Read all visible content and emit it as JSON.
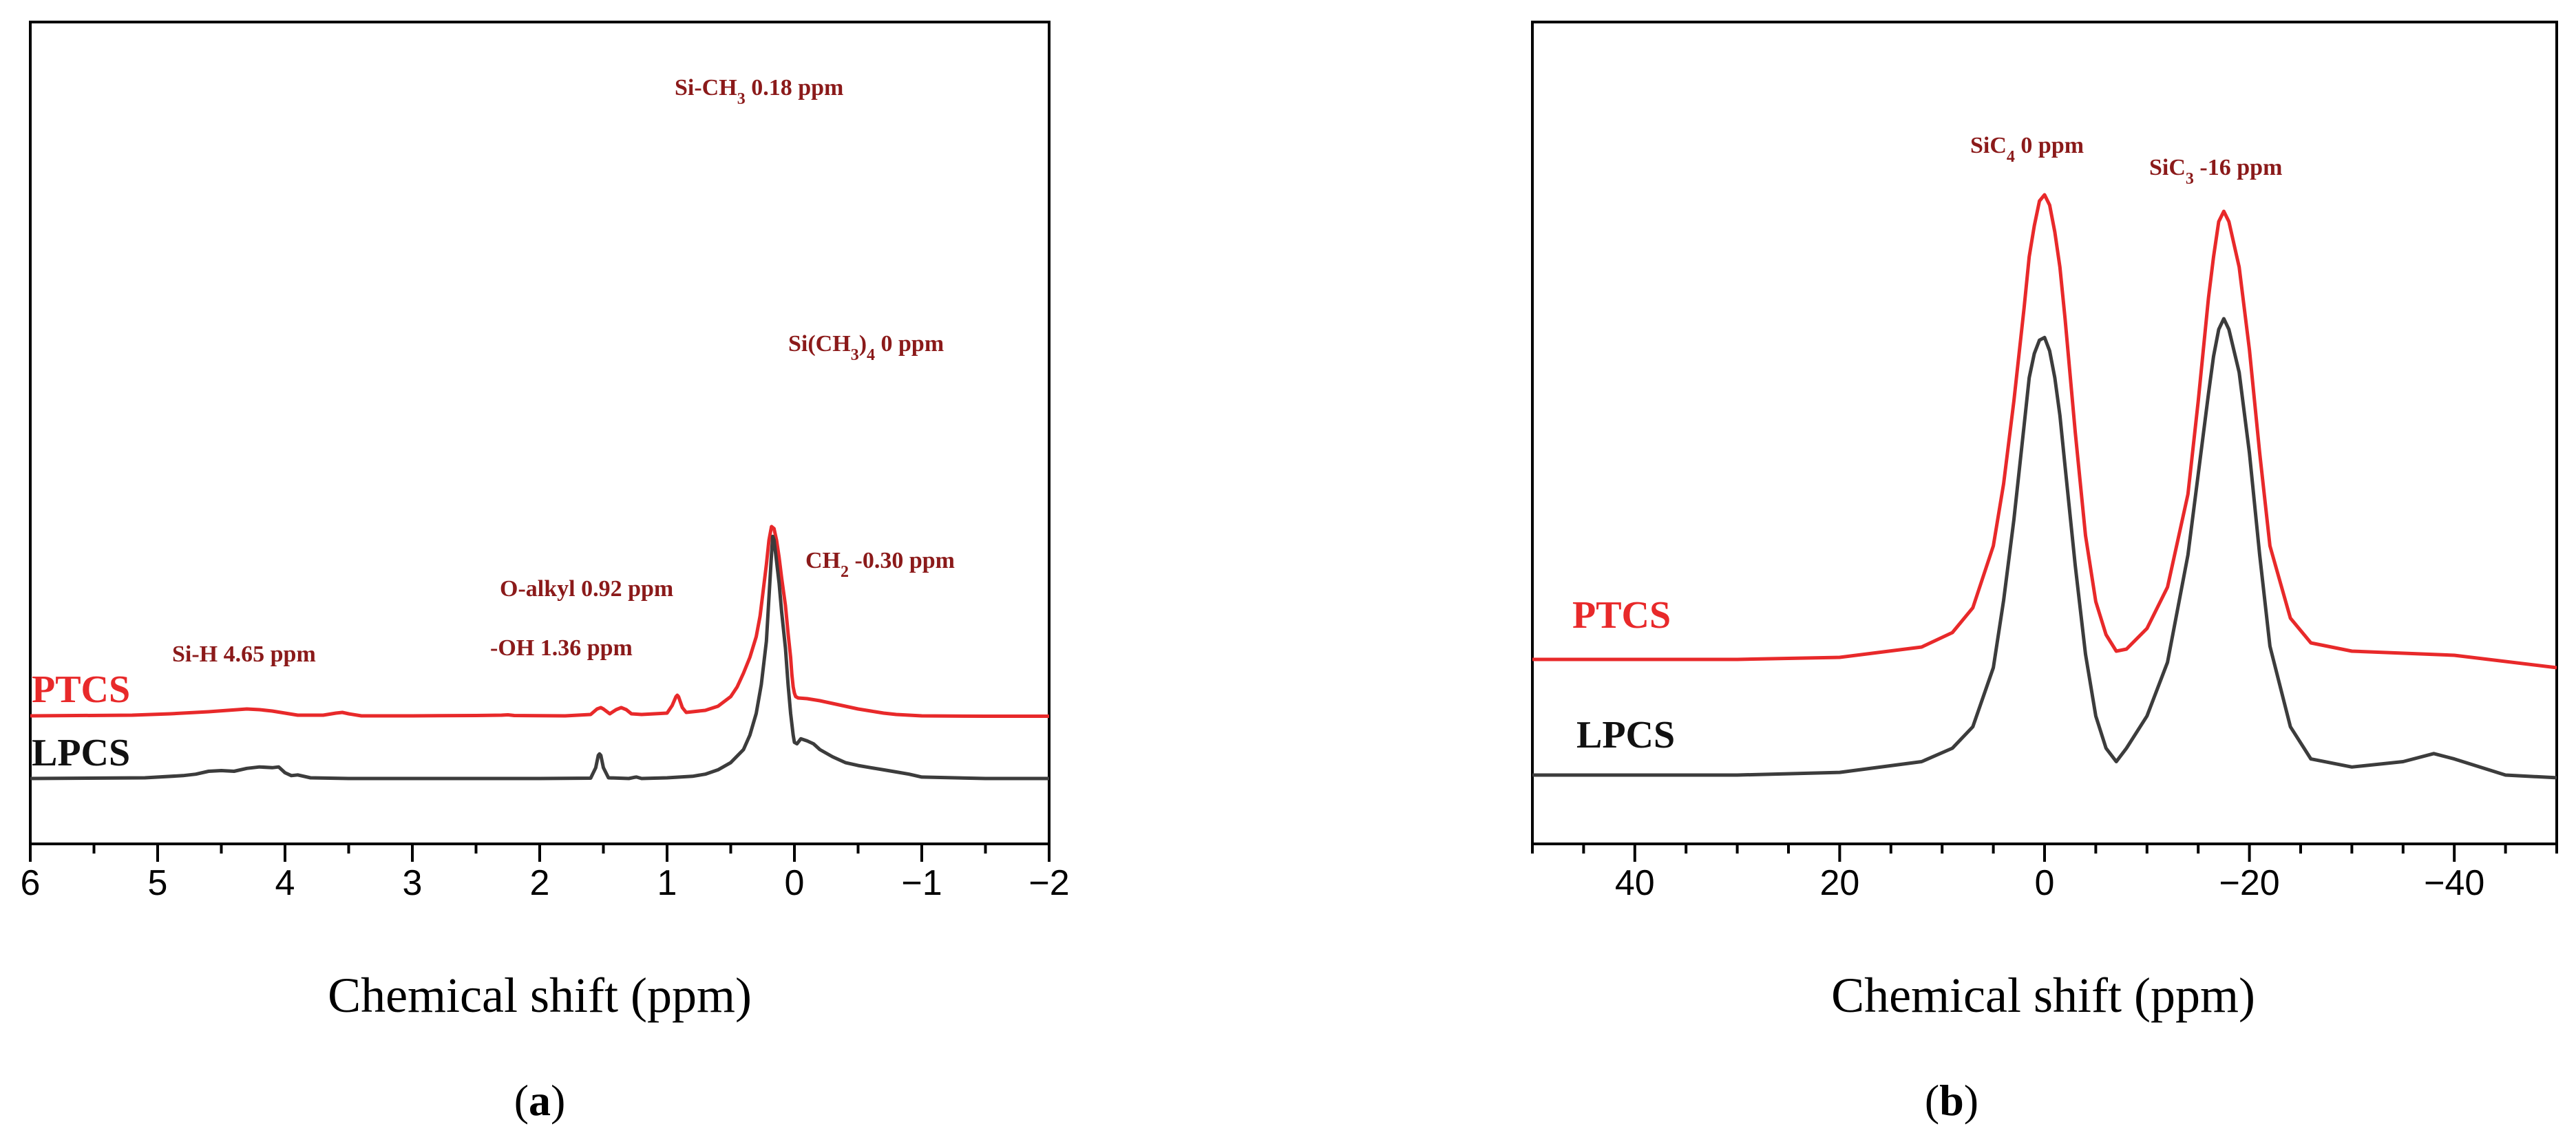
{
  "chart_data": [
    {
      "type": "line",
      "panel_label": "a",
      "xlabel": "Chemical shift (ppm)",
      "xlim": [
        6,
        -2
      ],
      "xticks": [
        6,
        5,
        4,
        3,
        2,
        1,
        0,
        -1,
        -2
      ],
      "tick_labels": [
        "6",
        "5",
        "4",
        "3",
        "2",
        "1",
        "0",
        "−1",
        "−2"
      ],
      "yaxis": "none",
      "series": [
        {
          "name": "PTCS",
          "color": "#e8292a",
          "baseline": 0.0,
          "x": [
            6,
            5.2,
            4.9,
            4.7,
            4.6,
            4.45,
            4.3,
            4.2,
            4.1,
            4.0,
            3.9,
            3.7,
            3.6,
            3.55,
            3.5,
            3.4,
            3.0,
            2.5,
            2.3,
            2.25,
            2.2,
            1.8,
            1.6,
            1.55,
            1.52,
            1.5,
            1.45,
            1.4,
            1.36,
            1.32,
            1.28,
            1.2,
            1.0,
            0.96,
            0.93,
            0.92,
            0.91,
            0.88,
            0.85,
            0.7,
            0.6,
            0.5,
            0.45,
            0.4,
            0.35,
            0.3,
            0.27,
            0.25,
            0.22,
            0.2,
            0.18,
            0.16,
            0.14,
            0.12,
            0.1,
            0.07,
            0.05,
            0.03,
            0.02,
            0.01,
            0.0,
            -0.01,
            -0.03,
            -0.1,
            -0.2,
            -0.3,
            -0.4,
            -0.5,
            -0.6,
            -0.7,
            -0.8,
            -0.9,
            -1.0,
            -1.5,
            -2.0
          ],
          "y": [
            0.0,
            0.01,
            0.03,
            0.05,
            0.06,
            0.08,
            0.1,
            0.09,
            0.07,
            0.04,
            0.01,
            0.01,
            0.04,
            0.05,
            0.03,
            0.0,
            0.0,
            0.005,
            0.01,
            0.015,
            0.005,
            0.0,
            0.02,
            0.1,
            0.12,
            0.1,
            0.03,
            0.09,
            0.12,
            0.09,
            0.03,
            0.02,
            0.04,
            0.15,
            0.28,
            0.3,
            0.28,
            0.12,
            0.05,
            0.08,
            0.14,
            0.28,
            0.42,
            0.62,
            0.85,
            1.15,
            1.45,
            1.75,
            2.2,
            2.55,
            2.75,
            2.72,
            2.55,
            2.3,
            2.0,
            1.6,
            1.2,
            0.85,
            0.6,
            0.42,
            0.33,
            0.28,
            0.26,
            0.25,
            0.22,
            0.18,
            0.14,
            0.1,
            0.07,
            0.04,
            0.02,
            0.01,
            0.0,
            -0.005,
            -0.005
          ]
        },
        {
          "name": "LPCS",
          "color": "#3c3c3c",
          "baseline": 0.0,
          "x": [
            6,
            5.1,
            4.8,
            4.7,
            4.6,
            4.5,
            4.4,
            4.3,
            4.2,
            4.1,
            4.05,
            4.0,
            3.95,
            3.9,
            3.8,
            3.5,
            3.0,
            2.0,
            1.6,
            1.56,
            1.54,
            1.53,
            1.52,
            1.5,
            1.46,
            1.3,
            1.26,
            1.24,
            1.2,
            1.0,
            0.8,
            0.7,
            0.6,
            0.5,
            0.4,
            0.35,
            0.3,
            0.26,
            0.22,
            0.2,
            0.18,
            0.17,
            0.16,
            0.14,
            0.12,
            0.1,
            0.07,
            0.05,
            0.03,
            0.01,
            0.0,
            -0.02,
            -0.05,
            -0.1,
            -0.15,
            -0.2,
            -0.3,
            -0.4,
            -0.5,
            -0.6,
            -0.7,
            -0.8,
            -0.9,
            -1.0,
            -1.5,
            -2.0
          ],
          "y": [
            0.0,
            0.01,
            0.04,
            0.06,
            0.1,
            0.11,
            0.1,
            0.14,
            0.16,
            0.15,
            0.16,
            0.08,
            0.04,
            0.05,
            0.01,
            0.0,
            0.0,
            0.0,
            0.005,
            0.15,
            0.32,
            0.34,
            0.32,
            0.15,
            0.01,
            0.0,
            0.015,
            0.02,
            0.0,
            0.01,
            0.03,
            0.06,
            0.12,
            0.22,
            0.4,
            0.6,
            0.9,
            1.3,
            1.9,
            2.5,
            3.1,
            3.35,
            3.3,
            3.0,
            2.7,
            2.3,
            1.8,
            1.3,
            0.9,
            0.6,
            0.5,
            0.48,
            0.55,
            0.52,
            0.48,
            0.4,
            0.3,
            0.22,
            0.18,
            0.15,
            0.12,
            0.09,
            0.06,
            0.02,
            0.0,
            0.0
          ]
        }
      ],
      "annotations": [
        {
          "text": "Si-CH",
          "sub": "3",
          "text2": " 0.18 ppm",
          "x": 0.18
        },
        {
          "text": "Si(CH",
          "sub": "3",
          "text2": ")",
          "sub2": "4",
          "text3": " 0 ppm",
          "x": 0.0
        },
        {
          "text": "CH",
          "sub": "2",
          "text2": " -0.30 ppm",
          "x": -0.3
        },
        {
          "text": "O-alkyl 0.92 ppm",
          "x": 0.92
        },
        {
          "text": "-OH 1.36 ppm",
          "x": 1.36
        },
        {
          "text": "Si-H 4.65 ppm",
          "x": 4.65
        }
      ],
      "legend": [
        {
          "label": "PTCS",
          "color": "#e8292a"
        },
        {
          "label": "LPCS",
          "color": "#111111"
        }
      ]
    },
    {
      "type": "line",
      "panel_label": "b",
      "xlabel": "Chemical shift (ppm)",
      "xlim": [
        50,
        -50
      ],
      "xticks": [
        40,
        20,
        0,
        -20,
        -40
      ],
      "tick_labels": [
        "40",
        "20",
        "0",
        "−20",
        "−40"
      ],
      "yaxis": "none",
      "series": [
        {
          "name": "PTCS",
          "color": "#e8292a",
          "x": [
            50,
            40,
            30,
            20,
            12,
            9,
            7,
            5,
            4,
            3,
            2,
            1.5,
            1,
            0.5,
            0,
            -0.5,
            -1,
            -1.5,
            -2,
            -3,
            -4,
            -5,
            -6,
            -7,
            -8,
            -10,
            -12,
            -14,
            -15,
            -16,
            -16.5,
            -17,
            -17.5,
            -18,
            -19,
            -20,
            -21,
            -22,
            -24,
            -26,
            -30,
            -40,
            -50
          ],
          "y": [
            0.0,
            0.0,
            0.0,
            0.01,
            0.06,
            0.13,
            0.25,
            0.55,
            0.85,
            1.25,
            1.7,
            1.95,
            2.1,
            2.22,
            2.25,
            2.2,
            2.07,
            1.9,
            1.65,
            1.1,
            0.6,
            0.28,
            0.12,
            0.04,
            0.05,
            0.15,
            0.35,
            0.8,
            1.25,
            1.75,
            1.95,
            2.12,
            2.17,
            2.12,
            1.9,
            1.5,
            1.0,
            0.55,
            0.2,
            0.08,
            0.04,
            0.02,
            -0.04
          ]
        },
        {
          "name": "LPCS",
          "color": "#3c3c3c",
          "x": [
            50,
            40,
            30,
            20,
            12,
            9,
            7,
            5,
            4,
            3,
            2,
            1.5,
            1,
            0.5,
            0,
            -0.5,
            -1,
            -1.5,
            -2,
            -3,
            -4,
            -5,
            -6,
            -7,
            -8,
            -10,
            -12,
            -14,
            -15,
            -16,
            -16.5,
            -17,
            -17.5,
            -18,
            -19,
            -20,
            -21,
            -22,
            -24,
            -26,
            -30,
            -35,
            -38,
            -40,
            -45,
            -50
          ],
          "y": [
            0.0,
            0.0,
            0.0,
            0.01,
            0.05,
            0.1,
            0.18,
            0.4,
            0.65,
            0.95,
            1.3,
            1.48,
            1.57,
            1.62,
            1.63,
            1.58,
            1.48,
            1.34,
            1.15,
            0.78,
            0.45,
            0.22,
            0.1,
            0.05,
            0.1,
            0.22,
            0.42,
            0.82,
            1.12,
            1.42,
            1.56,
            1.66,
            1.7,
            1.66,
            1.5,
            1.2,
            0.82,
            0.48,
            0.18,
            0.06,
            0.03,
            0.05,
            0.08,
            0.06,
            0.0,
            -0.01
          ]
        }
      ],
      "annotations": [
        {
          "text": "SiC",
          "sub": "4",
          "text2": " 0 ppm",
          "x": 0
        },
        {
          "text": "SiC",
          "sub": "3",
          "text2": " -16 ppm",
          "x": -16
        }
      ],
      "legend": [
        {
          "label": "PTCS",
          "color": "#e8292a"
        },
        {
          "label": "LPCS",
          "color": "#111111"
        }
      ]
    }
  ]
}
